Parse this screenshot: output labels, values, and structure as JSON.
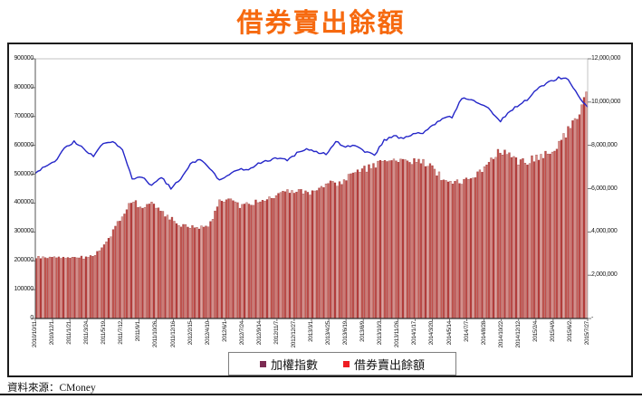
{
  "title": "借券賣出餘額",
  "source": "資料來源：CMoney",
  "colors": {
    "title": "#F6690F",
    "line": "#2426C8",
    "bar_fill": "#C9524E",
    "bar_edge": "#8E2A28",
    "axis_text": "#1A1A1A"
  },
  "chart_data": {
    "type": "combo",
    "title": "借券賣出餘額",
    "subtitle": "",
    "grid": false,
    "legend_position": "bottom-center",
    "legend": [
      {
        "label": "加權指數",
        "marker_color": "#7C2B52",
        "series_type": "line",
        "draw_color": "#2426C8",
        "axis": "left"
      },
      {
        "label": "借券賣出餘額",
        "marker_color": "#EE1D23",
        "series_type": "bar",
        "draw_color": "#C9524E",
        "axis": "right"
      }
    ],
    "left_axis": {
      "min": 0,
      "max": 900000,
      "step": 100000,
      "tick_labels": [
        "900000",
        "800000",
        "700000",
        "600000",
        "500000",
        "400000",
        "300000",
        "200000",
        "100000",
        "0"
      ]
    },
    "right_axis": {
      "min": 0,
      "max": 12000000,
      "step": 2000000,
      "tick_labels": [
        "12,000,000",
        "10,000,000",
        "8,000,000",
        "6,000,000",
        "4,000,000",
        "2,000,000",
        "-"
      ]
    },
    "x_tick_labels": [
      "2010/10/11",
      "2010/12/1",
      "2011/1/21",
      "2011/3/24",
      "2011/5/19",
      "2011/7/12",
      "2011/9/1",
      "2011/10/26",
      "2011/12/16",
      "2012/2/15",
      "2012/4/10",
      "2012/6/1",
      "2012/7/24",
      "2012/9/14",
      "2012/11/7",
      "2012/12/27",
      "2013/3/1",
      "2013/4/25",
      "2013/6/19",
      "2013/8/9",
      "2013/10/3",
      "2013/11/26",
      "2014/1/17",
      "2014/3/20",
      "2014/5/14",
      "2014/7/7",
      "2014/8/28",
      "2014/10/22",
      "2014/12/12",
      "2015/2/4",
      "2015/4/9",
      "2015/6/2",
      "2015/7/27"
    ],
    "series": [
      {
        "name": "加權指數",
        "axis": "left",
        "type": "line",
        "values": [
          503000,
          526000,
          541000,
          588000,
          614000,
          588000,
          563000,
          607000,
          614000,
          588000,
          481000,
          491000,
          459000,
          491000,
          450000,
          485000,
          535000,
          551000,
          522000,
          478000,
          500000,
          516000,
          516000,
          538000,
          548000,
          557000,
          548000,
          573000,
          585000,
          576000,
          570000,
          614000,
          595000,
          598000,
          579000,
          566000,
          617000,
          633000,
          623000,
          639000,
          642000,
          670000,
          692000,
          699000,
          762000,
          758000,
          743000,
          721000,
          683000,
          721000,
          740000,
          765000,
          802000,
          818000,
          834000,
          828000,
          774000,
          733000
        ]
      },
      {
        "name": "借券賣出餘額",
        "axis": "right",
        "type": "bar",
        "values": [
          2810000,
          2810000,
          2850000,
          2810000,
          2850000,
          2810000,
          2900000,
          3270000,
          3990000,
          4740000,
          5500000,
          5120000,
          5500000,
          4950000,
          4620000,
          4320000,
          4200000,
          4240000,
          4320000,
          5450000,
          5540000,
          5200000,
          5330000,
          5370000,
          5540000,
          5750000,
          5830000,
          5920000,
          5790000,
          5870000,
          6290000,
          6170000,
          6420000,
          6670000,
          6880000,
          7090000,
          7260000,
          7380000,
          7340000,
          7260000,
          7220000,
          7010000,
          6460000,
          6250000,
          6340000,
          6460000,
          6840000,
          7380000,
          7720000,
          7470000,
          7170000,
          7300000,
          7470000,
          7640000,
          7970000,
          8690000,
          9480000,
          10360000
        ]
      }
    ]
  }
}
